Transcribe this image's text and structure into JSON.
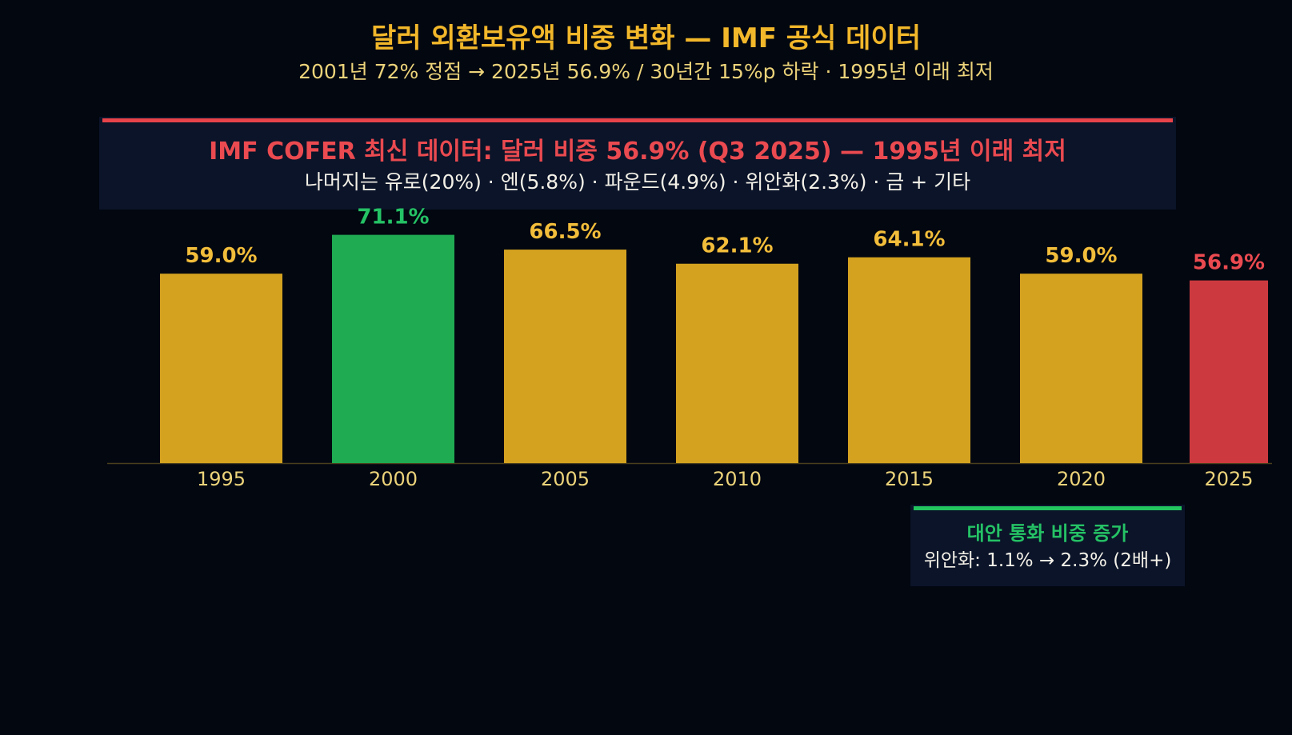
{
  "chart_data": {
    "type": "bar",
    "title": "달러 외환보유액 비중 변화 — IMF 공식 데이터",
    "subtitle": "2001년 72% 정점 → 2025년 56.9% / 30년간 15%p 하락 · 1995년 이래 최저",
    "categories": [
      "1995",
      "2000",
      "2005",
      "2010",
      "2015",
      "2020",
      "2025"
    ],
    "values": [
      59.0,
      71.1,
      66.5,
      62.1,
      64.1,
      59.0,
      56.9
    ],
    "value_labels": [
      "59.0%",
      "71.1%",
      "66.5%",
      "62.1%",
      "64.1%",
      "59.0%",
      "56.9%"
    ],
    "bar_colors": [
      "#d4a21f",
      "#1fab52",
      "#d4a21f",
      "#d4a21f",
      "#d4a21f",
      "#d4a21f",
      "#cc3a40"
    ],
    "label_colors": [
      "#f2bd3a",
      "#25c265",
      "#f2bd3a",
      "#f2bd3a",
      "#f2bd3a",
      "#f2bd3a",
      "#ea4a50"
    ],
    "ylim": [
      0,
      72
    ],
    "grid": false,
    "xlabel": "",
    "ylabel": ""
  },
  "callout": {
    "title": "IMF COFER 최신 데이터: 달러 비중 56.9% (Q3 2025) — 1995년 이래 최저",
    "subtitle": "나머지는 유로(20%) · 엔(5.8%) · 파운드(4.9%) · 위안화(2.3%) · 금 + 기타"
  },
  "note": {
    "title": "대안 통화 비중 증가",
    "subtitle": "위안화: 1.1% → 2.3% (2배+)"
  },
  "colors": {
    "background": "#020710",
    "title": "#f2b72a",
    "subtitle": "#ecd37a",
    "gold": "#d4a21f",
    "green": "#1fab52",
    "red": "#cc3a40",
    "tick_label": "#ecd37a",
    "axis": "#4a3f1c"
  }
}
